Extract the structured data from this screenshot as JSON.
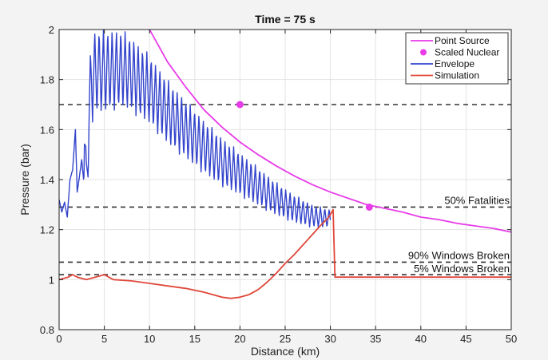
{
  "chart_data": {
    "type": "line",
    "title": "Time = 75 s",
    "xlabel": "Distance (km)",
    "ylabel": "Pressure (bar)",
    "xlim": [
      0,
      50
    ],
    "ylim": [
      0.8,
      2.0
    ],
    "xticks": [
      "0",
      "5",
      "10",
      "15",
      "20",
      "25",
      "30",
      "35",
      "40",
      "45",
      "50"
    ],
    "yticks": [
      "0.8",
      "1",
      "1.2",
      "1.4",
      "1.6",
      "1.8",
      "2"
    ],
    "grid": true,
    "legend_position": "top-right",
    "legend": [
      {
        "label": "Point Source",
        "color": "#e83ce8",
        "style": "line"
      },
      {
        "label": "Scaled Nuclear",
        "color": "#e83ce8",
        "style": "dot"
      },
      {
        "label": "Envelope",
        "color": "#3344cc",
        "style": "line"
      },
      {
        "label": "Simulation",
        "color": "#e0473a",
        "style": "line"
      }
    ],
    "thresholds": [
      {
        "label": "50% Fatalities",
        "y": 1.29
      },
      {
        "label": "90% Windows Broken",
        "y": 1.07
      },
      {
        "label": "5% Windows Broken",
        "y": 1.02
      },
      {
        "label": "",
        "y": 1.7
      }
    ],
    "series": [
      {
        "name": "Point Source",
        "color": "#e83ce8",
        "x": [
          10,
          12,
          14,
          16,
          18,
          20,
          22,
          24,
          26,
          28,
          30,
          32,
          34,
          36,
          38,
          40,
          42,
          44,
          46,
          48,
          50
        ],
        "y": [
          2.0,
          1.87,
          1.77,
          1.68,
          1.61,
          1.55,
          1.5,
          1.455,
          1.415,
          1.38,
          1.35,
          1.325,
          1.3,
          1.285,
          1.27,
          1.25,
          1.24,
          1.225,
          1.215,
          1.205,
          1.19
        ]
      },
      {
        "name": "Scaled Nuclear",
        "color": "#e83ce8",
        "x": [
          20,
          34.3
        ],
        "y": [
          1.7,
          1.29
        ]
      },
      {
        "name": "Envelope",
        "color": "#3344cc",
        "x": [
          0,
          0.3,
          0.6,
          0.9,
          1.2,
          1.5,
          1.8,
          2.0,
          2.2,
          2.5,
          2.8,
          3.0,
          3.3,
          3.6,
          4.0,
          5.0,
          6.0,
          7.0,
          8.0,
          10,
          12,
          14,
          16,
          18,
          20,
          22,
          24,
          26,
          28,
          30
        ],
        "y": [
          1.32,
          1.27,
          1.31,
          1.25,
          1.4,
          1.44,
          1.6,
          1.35,
          1.4,
          1.48,
          1.81,
          1.5,
          1.85,
          1.97,
          2.0,
          2.0,
          2.0,
          2.0,
          1.97,
          1.9,
          1.8,
          1.72,
          1.64,
          1.57,
          1.51,
          1.45,
          1.39,
          1.34,
          1.3,
          1.28
        ]
      },
      {
        "name": "Simulation",
        "color": "#e0473a",
        "x": [
          0,
          1,
          1.5,
          2,
          3,
          4,
          5,
          6,
          8,
          10,
          12,
          14,
          16,
          18,
          19,
          20,
          21,
          22,
          23,
          24,
          25,
          26,
          27,
          28,
          29,
          29.7,
          30,
          30.3,
          30.5,
          31,
          35,
          40,
          45,
          50
        ],
        "y": [
          1.0,
          1.01,
          1.02,
          1.01,
          1.0,
          1.01,
          1.02,
          1.0,
          0.995,
          0.985,
          0.975,
          0.965,
          0.95,
          0.93,
          0.925,
          0.93,
          0.94,
          0.96,
          0.99,
          1.025,
          1.065,
          1.1,
          1.14,
          1.18,
          1.22,
          1.245,
          1.26,
          1.28,
          1.01,
          1.01,
          1.01,
          1.01,
          1.01,
          1.01
        ]
      }
    ]
  }
}
